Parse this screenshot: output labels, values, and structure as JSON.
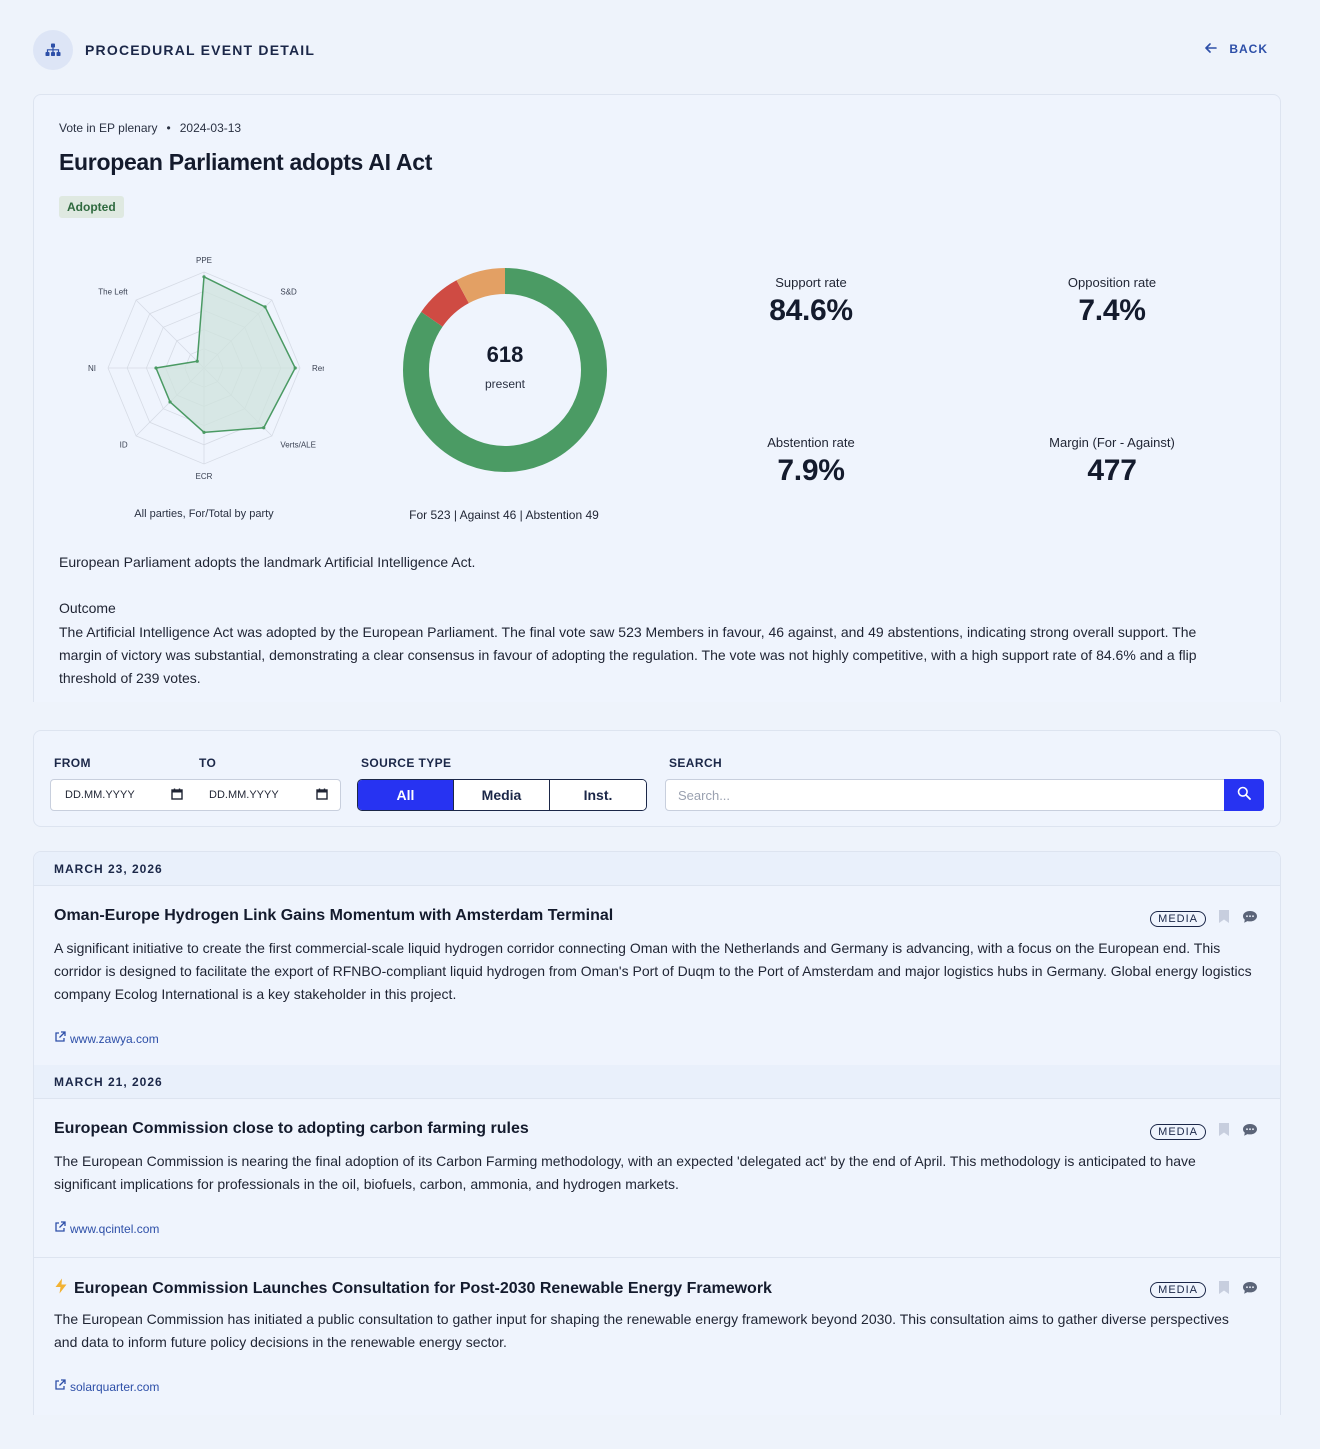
{
  "header": {
    "title": "PROCEDURAL EVENT DETAIL",
    "back_label": "BACK"
  },
  "event": {
    "type": "Vote in EP plenary",
    "separator": "•",
    "date": "2024-03-13",
    "title": "European Parliament adopts AI Act",
    "status": "Adopted",
    "summary": "European Parliament adopts the landmark Artificial Intelligence Act.",
    "outcome_heading": "Outcome",
    "outcome_text": "The Artificial Intelligence Act was adopted by the European Parliament. The final vote saw 523 Members in favour, 46 against, and 49 abstentions, indicating strong overall support. The margin of victory was substantial, demonstrating a clear consensus in favour of adopting the regulation. The vote was not highly competitive, with a high support rate of 84.6% and a flip threshold of 239 votes."
  },
  "chart_data": [
    {
      "type": "radar",
      "caption": "All parties, For/Total by party",
      "axes": [
        "PPE",
        "S&D",
        "Renew",
        "Verts/ALE",
        "ECR",
        "ID",
        "NI",
        "The Left"
      ],
      "values": [
        0.95,
        0.9,
        0.95,
        0.88,
        0.67,
        0.5,
        0.5,
        0.1
      ],
      "max": 1,
      "color": "#4a9a63",
      "fill": "#cfe3dc"
    },
    {
      "type": "pie",
      "variant": "donut",
      "center_value": "618",
      "center_label": "present",
      "caption": "For 523 | Against 46 | Abstention 49",
      "categories": [
        "For",
        "Against",
        "Abstention"
      ],
      "values": [
        523,
        46,
        49
      ],
      "colors": [
        "#4b9b64",
        "#cf4b43",
        "#e3a064"
      ]
    }
  ],
  "stats": [
    {
      "label": "Support rate",
      "value": "84.6%"
    },
    {
      "label": "Opposition rate",
      "value": "7.4%"
    },
    {
      "label": "Abstention rate",
      "value": "7.9%"
    },
    {
      "label": "Margin (For - Against)",
      "value": "477"
    }
  ],
  "filters": {
    "from_label": "FROM",
    "to_label": "TO",
    "from_value": "DD.MM.YYYY",
    "to_value": "DD.MM.YYYY",
    "source_label": "SOURCE TYPE",
    "source_options": [
      "All",
      "Media",
      "Inst."
    ],
    "source_selected": "All",
    "search_label": "SEARCH",
    "search_placeholder": "Search..."
  },
  "news": {
    "groups": [
      {
        "date": "MARCH 23, 2026",
        "articles": [
          {
            "title": "Oman-Europe Hydrogen Link Gains Momentum with Amsterdam Terminal",
            "tag": "MEDIA",
            "body": "A significant initiative to create the first commercial-scale liquid hydrogen corridor connecting Oman with the Netherlands and Germany is advancing, with a focus on the European end. This corridor is designed to facilitate the export of RFNBO-compliant liquid hydrogen from Oman's Port of Duqm to the Port of Amsterdam and major logistics hubs in Germany. Global energy logistics company Ecolog International is a key stakeholder in this project.",
            "source": "www.zawya.com"
          }
        ]
      },
      {
        "date": "MARCH 21, 2026",
        "articles": [
          {
            "title": "European Commission close to adopting carbon farming rules",
            "tag": "MEDIA",
            "body": "The European Commission is nearing the final adoption of its Carbon Farming methodology, with an expected 'delegated act' by the end of April. This methodology is anticipated to have significant implications for professionals in the oil, biofuels, carbon, ammonia, and hydrogen markets.",
            "source": "www.qcintel.com"
          },
          {
            "title": "European Commission Launches Consultation for Post-2030 Renewable Energy Framework",
            "tag": "MEDIA",
            "body": "The European Commission has initiated a public consultation to gather input for shaping the renewable energy framework beyond 2030. This consultation aims to gather diverse perspectives and data to inform future policy decisions in the renewable energy sector.",
            "source": "solarquarter.com",
            "icon": "lightning-icon"
          }
        ]
      }
    ]
  }
}
